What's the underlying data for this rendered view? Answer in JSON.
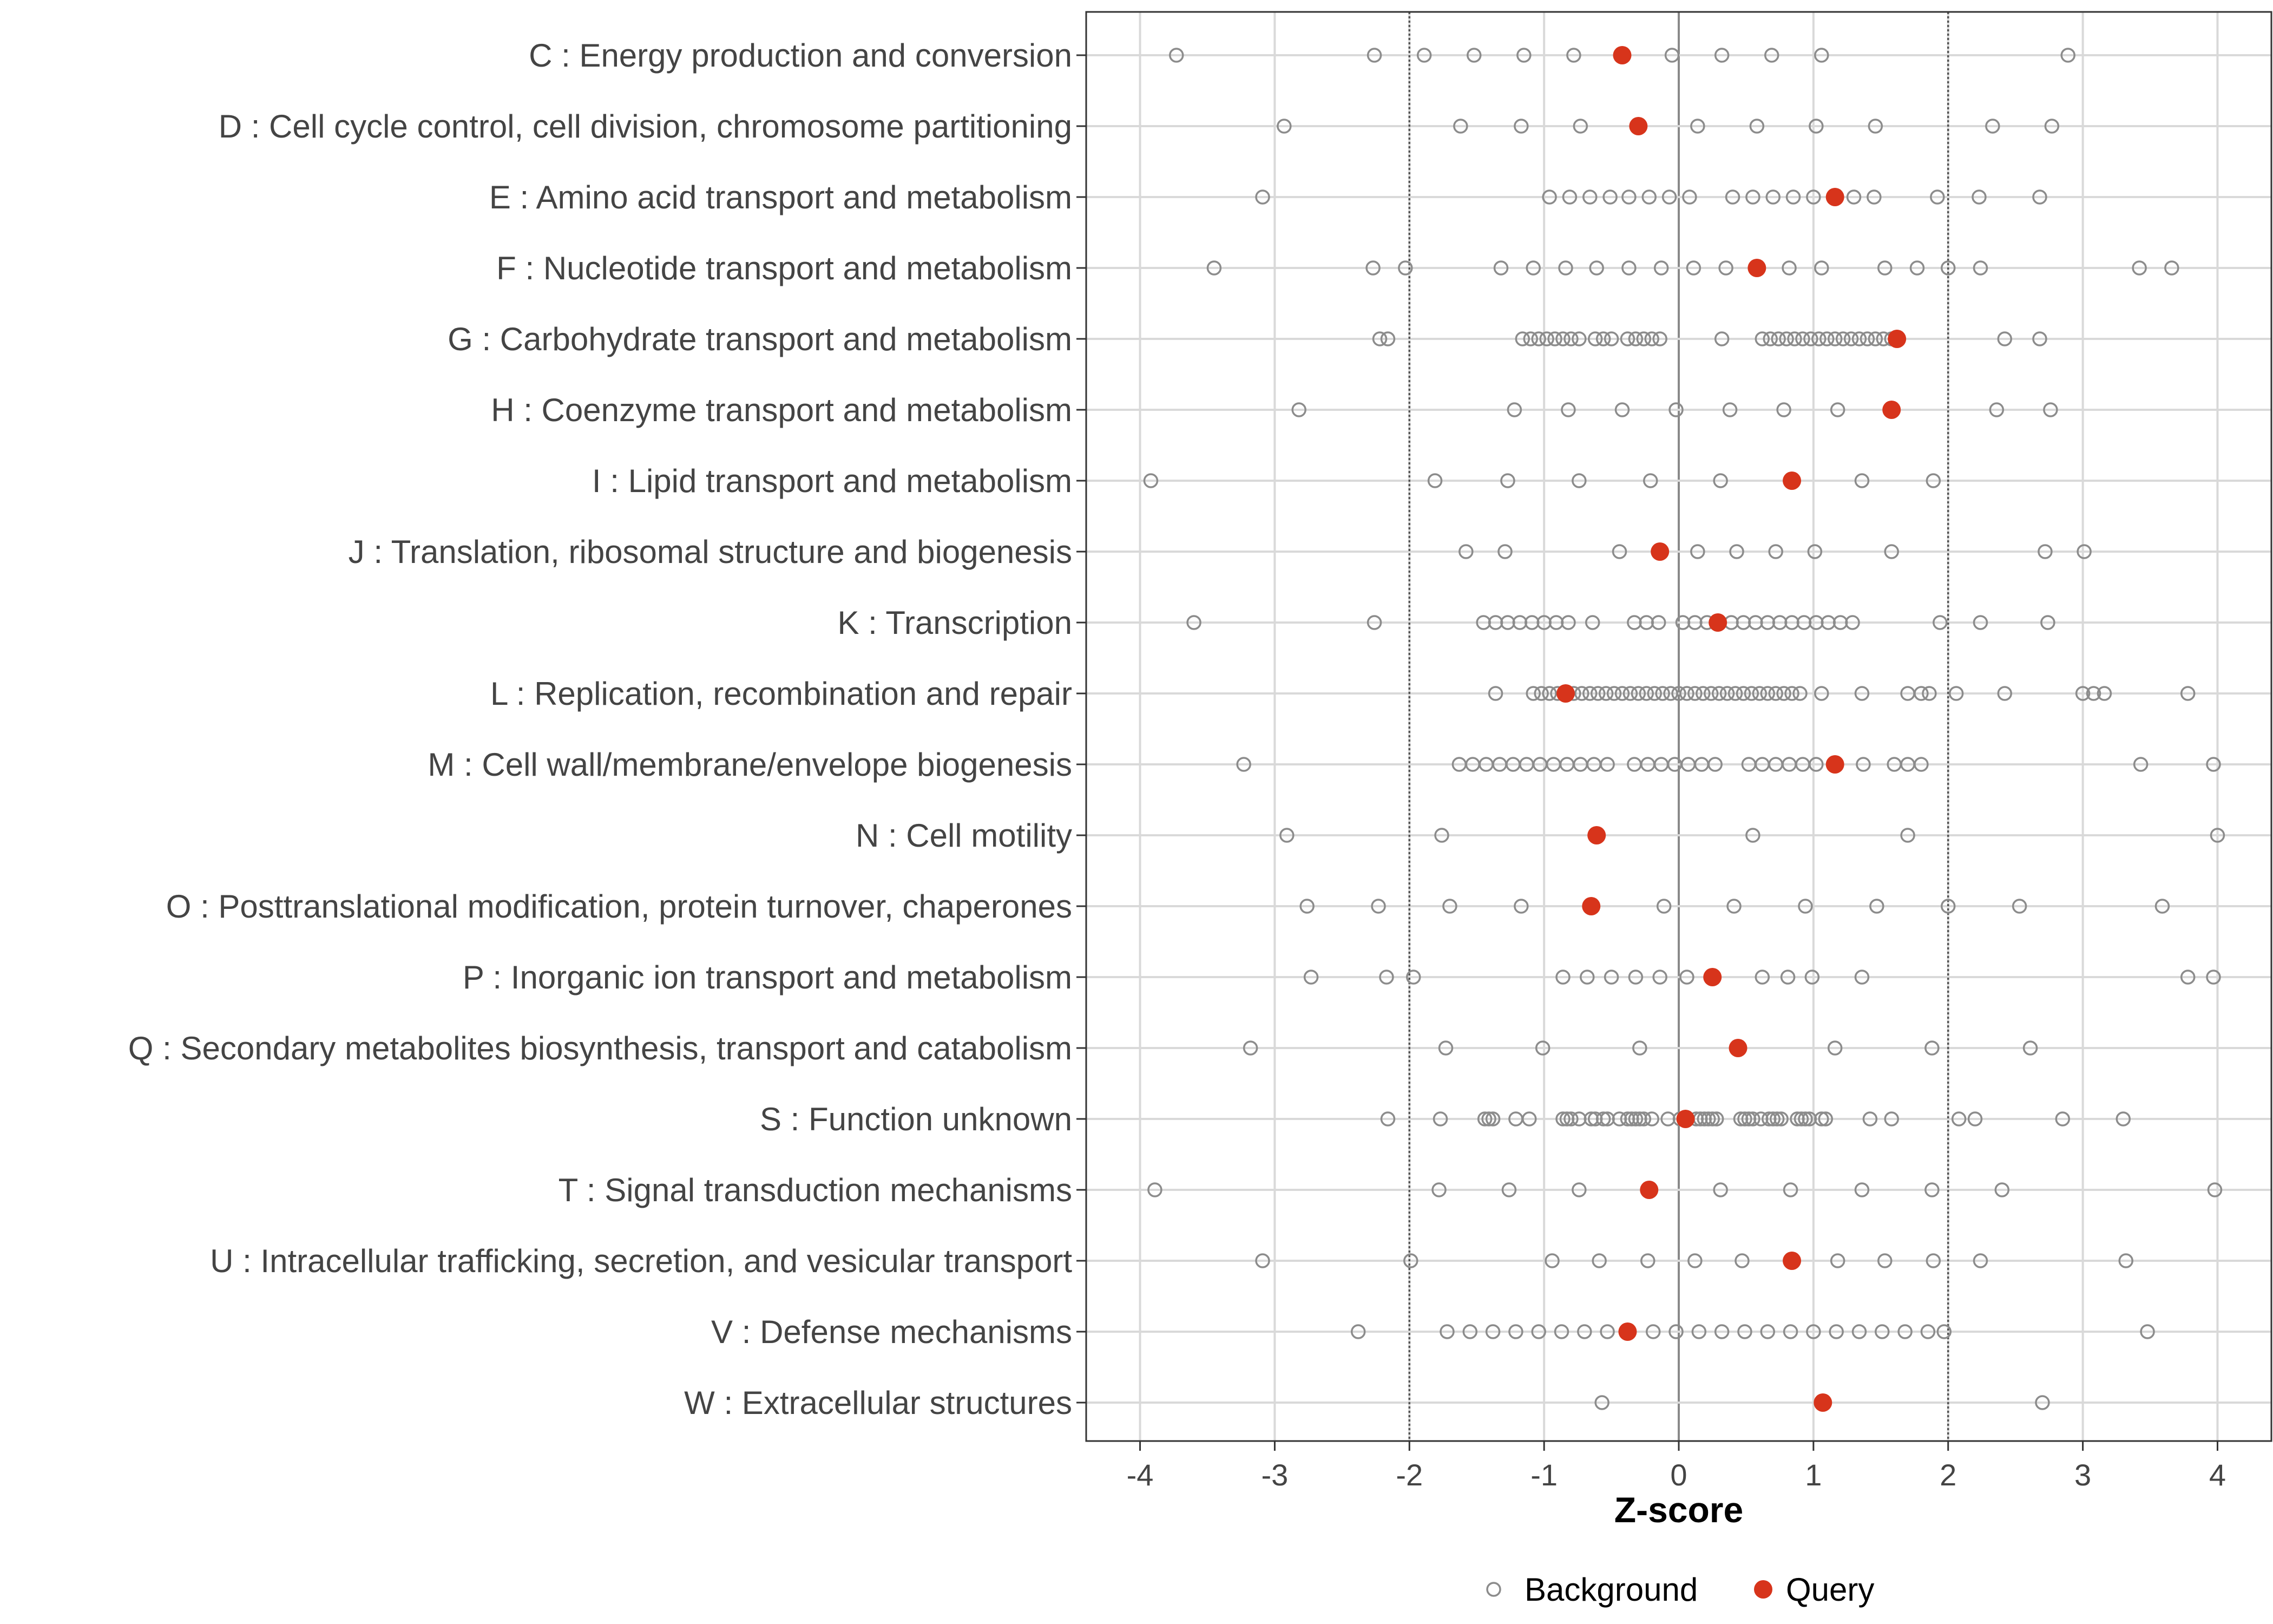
{
  "chart_data": {
    "type": "scatter",
    "xlabel": "Z-score",
    "xlim": [
      -4.4,
      4.4
    ],
    "x_ticks": [
      -4,
      -3,
      -2,
      -1,
      0,
      1,
      2,
      3,
      4
    ],
    "x_tick_labels": [
      "-4",
      "-3",
      "-2",
      "-1",
      "0",
      "1",
      "2",
      "3",
      "4"
    ],
    "reference_lines": [
      -2,
      2
    ],
    "grid": true,
    "legend_position": "bottom",
    "legend": [
      {
        "name": "Background",
        "style": "open-circle",
        "color": "#8c8c8c"
      },
      {
        "name": "Query",
        "style": "filled-circle",
        "color": "#d7341b"
      }
    ],
    "categories": [
      {
        "label": "C : Energy production and conversion",
        "query": -0.42,
        "background": [
          -3.73,
          -2.26,
          -1.89,
          -1.52,
          -1.15,
          -0.78,
          -0.05,
          0.32,
          0.69,
          1.06,
          2.89
        ]
      },
      {
        "label": "D : Cell cycle control, cell division, chromosome partitioning",
        "query": -0.3,
        "background": [
          -2.93,
          -1.62,
          -1.17,
          -0.73,
          0.14,
          0.58,
          1.02,
          1.46,
          2.33,
          2.77
        ]
      },
      {
        "label": "E : Amino acid transport and metabolism",
        "query": 1.16,
        "background": [
          -3.09,
          -0.96,
          -0.81,
          -0.66,
          -0.51,
          -0.37,
          -0.22,
          -0.07,
          0.08,
          0.4,
          0.55,
          0.7,
          0.85,
          1.0,
          1.3,
          1.45,
          1.92,
          2.23,
          2.68
        ]
      },
      {
        "label": "F : Nucleotide transport and metabolism",
        "query": 0.58,
        "background": [
          -3.45,
          -2.27,
          -2.03,
          -1.32,
          -1.08,
          -0.84,
          -0.61,
          -0.37,
          -0.13,
          0.11,
          0.35,
          0.82,
          1.06,
          1.53,
          1.77,
          2.0,
          2.24,
          3.42,
          3.66
        ]
      },
      {
        "label": "G : Carbohydrate transport and metabolism",
        "query": 1.62,
        "background": [
          -2.22,
          -2.16,
          -1.16,
          -1.1,
          -1.04,
          -0.98,
          -0.92,
          -0.86,
          -0.8,
          -0.74,
          -0.62,
          -0.56,
          -0.5,
          -0.38,
          -0.32,
          -0.26,
          -0.2,
          -0.14,
          0.32,
          0.62,
          0.68,
          0.74,
          0.8,
          0.86,
          0.92,
          0.98,
          1.04,
          1.1,
          1.16,
          1.22,
          1.28,
          1.34,
          1.4,
          1.46,
          1.52,
          1.58,
          2.42,
          2.68
        ]
      },
      {
        "label": "H : Coenzyme transport and metabolism",
        "query": 1.58,
        "background": [
          -2.82,
          -1.22,
          -0.82,
          -0.42,
          -0.02,
          0.38,
          0.78,
          1.18,
          2.36,
          2.76
        ]
      },
      {
        "label": "I : Lipid transport and metabolism",
        "query": 0.84,
        "background": [
          -3.92,
          -1.81,
          -1.27,
          -0.74,
          -0.21,
          0.31,
          1.36,
          1.89
        ]
      },
      {
        "label": "J : Translation, ribosomal structure and biogenesis",
        "query": -0.14,
        "background": [
          -1.58,
          -1.29,
          -0.44,
          0.14,
          0.43,
          0.72,
          1.01,
          1.58,
          2.72,
          3.01
        ]
      },
      {
        "label": "K : Transcription",
        "query": 0.29,
        "background": [
          -3.6,
          -2.26,
          -1.45,
          -1.36,
          -1.27,
          -1.18,
          -1.09,
          -1.0,
          -0.91,
          -0.82,
          -0.64,
          -0.33,
          -0.24,
          -0.15,
          0.03,
          0.12,
          0.21,
          0.39,
          0.48,
          0.57,
          0.66,
          0.75,
          0.84,
          0.93,
          1.02,
          1.11,
          1.2,
          1.29,
          1.94,
          2.24,
          2.74
        ]
      },
      {
        "label": "L : Replication, recombination and repair",
        "query": -0.84,
        "background": [
          -1.36,
          -1.08,
          -1.02,
          -0.96,
          -0.9,
          -0.78,
          -0.72,
          -0.66,
          -0.6,
          -0.54,
          -0.48,
          -0.42,
          -0.36,
          -0.3,
          -0.24,
          -0.18,
          -0.12,
          -0.06,
          0.0,
          0.06,
          0.12,
          0.18,
          0.24,
          0.3,
          0.36,
          0.42,
          0.48,
          0.54,
          0.6,
          0.66,
          0.72,
          0.78,
          0.84,
          0.9,
          1.06,
          1.36,
          1.7,
          1.8,
          1.86,
          2.06,
          2.42,
          3.0,
          3.08,
          3.16,
          3.78
        ]
      },
      {
        "label": "M : Cell wall/membrane/envelope biogenesis",
        "query": 1.16,
        "background": [
          -3.23,
          -1.63,
          -1.53,
          -1.43,
          -1.33,
          -1.23,
          -1.13,
          -1.03,
          -0.93,
          -0.83,
          -0.73,
          -0.63,
          -0.53,
          -0.33,
          -0.23,
          -0.13,
          -0.03,
          0.07,
          0.17,
          0.27,
          0.52,
          0.62,
          0.72,
          0.82,
          0.92,
          1.02,
          1.37,
          1.6,
          1.7,
          1.8,
          3.43,
          3.97
        ]
      },
      {
        "label": "N : Cell motility",
        "query": -0.61,
        "background": [
          -2.91,
          -1.76,
          0.55,
          1.7,
          4.0
        ]
      },
      {
        "label": "O : Posttranslational modification, protein turnover, chaperones",
        "query": -0.65,
        "background": [
          -2.76,
          -2.23,
          -1.7,
          -1.17,
          -0.11,
          0.41,
          0.94,
          1.47,
          2.0,
          2.53,
          3.59
        ]
      },
      {
        "label": "P : Inorganic ion transport and metabolism",
        "query": 0.25,
        "background": [
          -2.73,
          -2.17,
          -1.97,
          -0.86,
          -0.68,
          -0.5,
          -0.32,
          -0.14,
          0.06,
          0.62,
          0.81,
          0.99,
          1.36,
          3.78,
          3.97
        ]
      },
      {
        "label": "Q : Secondary metabolites biosynthesis, transport and catabolism",
        "query": 0.44,
        "background": [
          -3.18,
          -1.73,
          -1.01,
          -0.29,
          1.16,
          1.88,
          2.61
        ]
      },
      {
        "label": "S : Function unknown",
        "query": 0.05,
        "background": [
          -2.16,
          -1.77,
          -1.44,
          -1.41,
          -1.38,
          -1.21,
          -1.11,
          -0.86,
          -0.83,
          -0.8,
          -0.74,
          -0.65,
          -0.62,
          -0.56,
          -0.53,
          -0.44,
          -0.38,
          -0.35,
          -0.32,
          -0.29,
          -0.26,
          -0.2,
          -0.08,
          0.01,
          0.13,
          0.16,
          0.19,
          0.22,
          0.25,
          0.28,
          0.46,
          0.49,
          0.52,
          0.55,
          0.61,
          0.67,
          0.7,
          0.73,
          0.76,
          0.88,
          0.91,
          0.94,
          0.97,
          1.06,
          1.09,
          1.42,
          1.58,
          2.08,
          2.2,
          2.85,
          3.3
        ]
      },
      {
        "label": "T : Signal transduction mechanisms",
        "query": -0.22,
        "background": [
          -3.89,
          -1.78,
          -1.26,
          -0.74,
          0.31,
          0.83,
          1.36,
          1.88,
          2.4,
          3.98
        ]
      },
      {
        "label": "U : Intracellular trafficking, secretion, and vesicular transport",
        "query": 0.84,
        "background": [
          -3.09,
          -1.99,
          -0.94,
          -0.59,
          -0.23,
          0.12,
          0.47,
          1.18,
          1.53,
          1.89,
          2.24,
          3.32
        ]
      },
      {
        "label": "V : Defense mechanisms",
        "query": -0.38,
        "background": [
          -2.38,
          -1.72,
          -1.55,
          -1.38,
          -1.21,
          -1.04,
          -0.87,
          -0.7,
          -0.53,
          -0.19,
          -0.02,
          0.15,
          0.32,
          0.49,
          0.66,
          0.83,
          1.0,
          1.17,
          1.34,
          1.51,
          1.68,
          1.85,
          1.97,
          3.48
        ]
      },
      {
        "label": "W : Extracellular structures",
        "query": 1.07,
        "background": [
          -0.57,
          2.7
        ]
      }
    ]
  }
}
